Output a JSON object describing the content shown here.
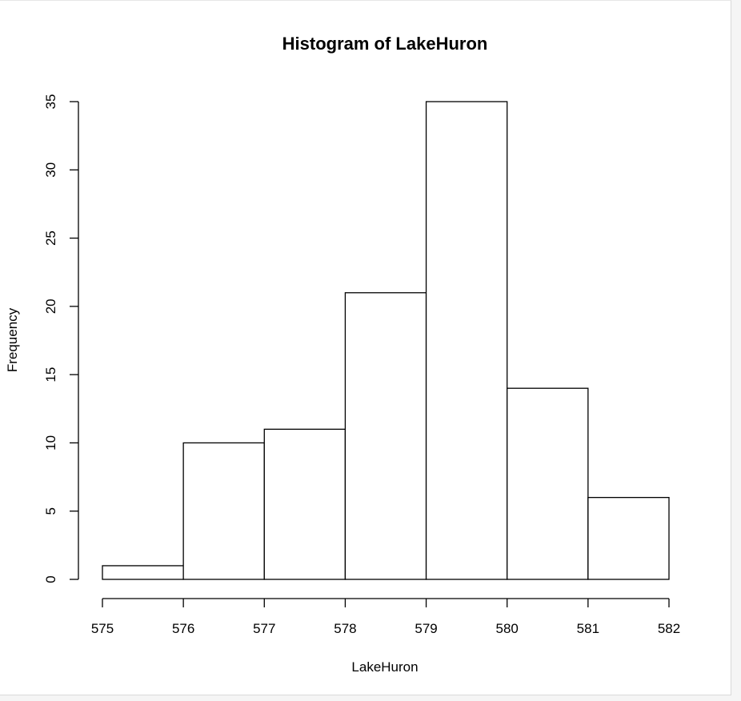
{
  "chart_data": {
    "type": "bar",
    "subtype": "histogram",
    "title": "Histogram of LakeHuron",
    "xlabel": "LakeHuron",
    "ylabel": "Frequency",
    "bins": [
      {
        "start": 575,
        "end": 576,
        "count": 1
      },
      {
        "start": 576,
        "end": 577,
        "count": 10
      },
      {
        "start": 577,
        "end": 578,
        "count": 11
      },
      {
        "start": 578,
        "end": 579,
        "count": 21
      },
      {
        "start": 579,
        "end": 580,
        "count": 35
      },
      {
        "start": 580,
        "end": 581,
        "count": 14
      },
      {
        "start": 581,
        "end": 582,
        "count": 6
      }
    ],
    "x_ticks": [
      "575",
      "576",
      "577",
      "578",
      "579",
      "580",
      "581",
      "582"
    ],
    "y_ticks": [
      "0",
      "5",
      "10",
      "15",
      "20",
      "25",
      "30",
      "35"
    ],
    "xlim": [
      575,
      582
    ],
    "ylim": [
      0,
      35
    ],
    "grid": false,
    "bar_fill": "#ffffff",
    "bar_stroke": "#000000"
  }
}
